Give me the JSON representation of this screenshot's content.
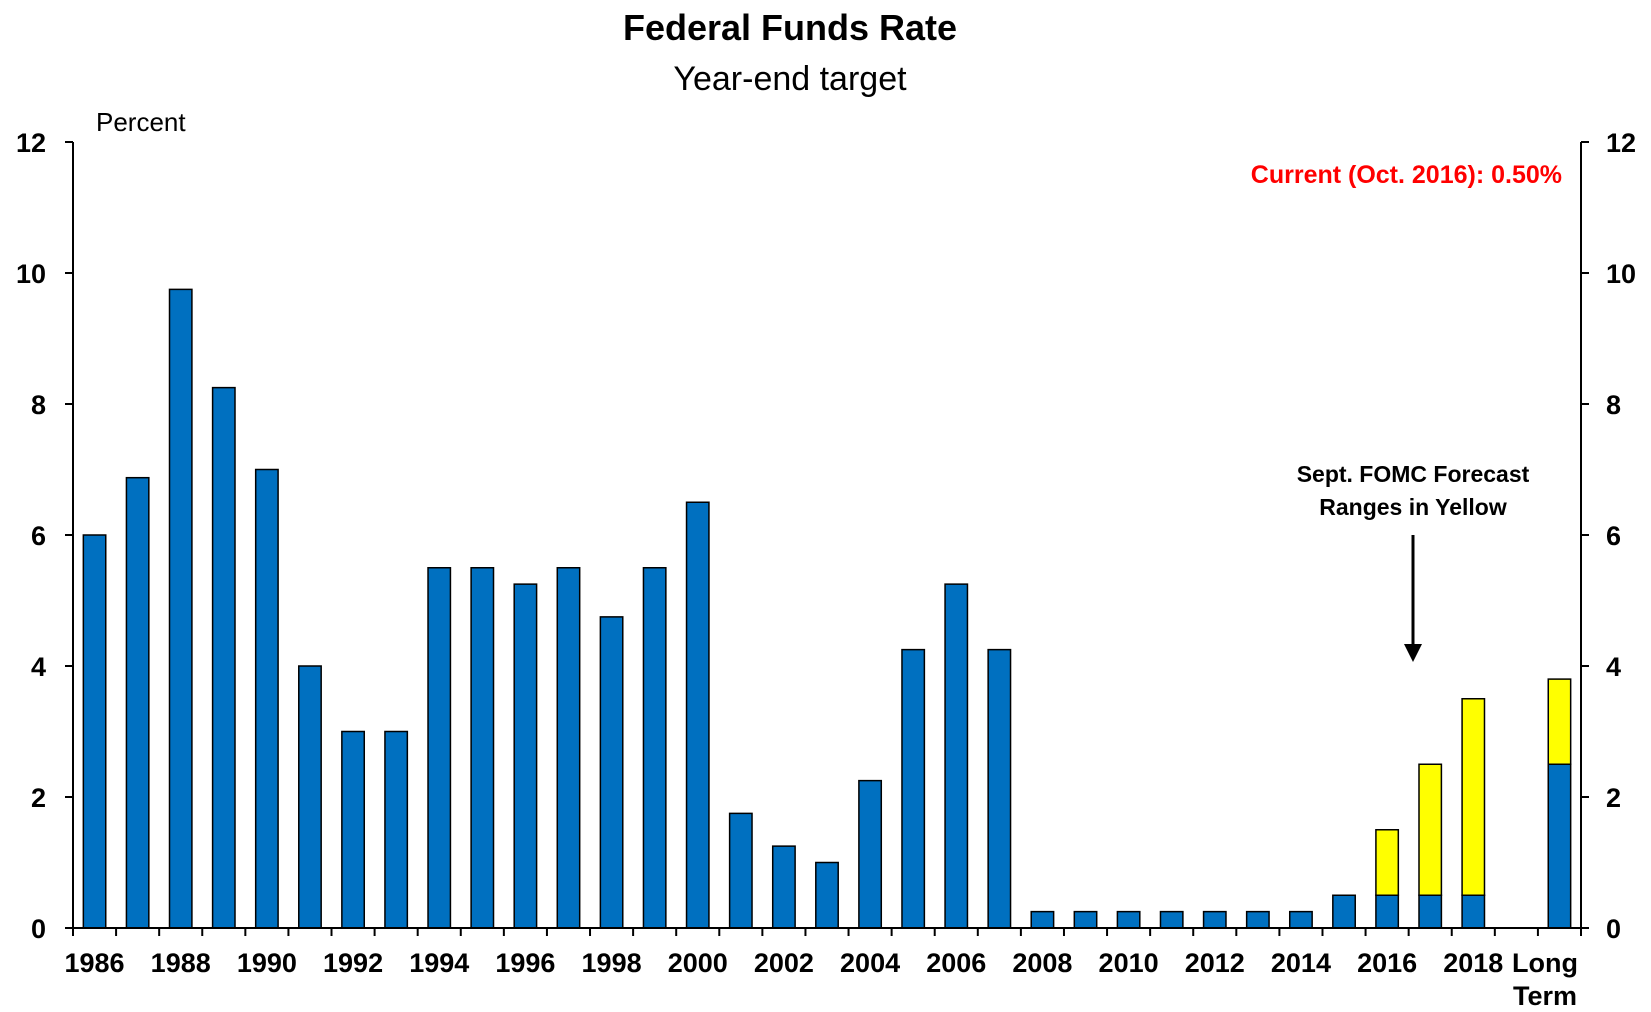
{
  "chart_data": {
    "type": "bar",
    "title": "Federal Funds Rate",
    "subtitle": "Year-end target",
    "ylabel": "Percent",
    "ylim": [
      0,
      12
    ],
    "yticks": [
      0,
      2,
      4,
      6,
      8,
      10,
      12
    ],
    "grid": false,
    "categories": [
      "1986",
      "1987",
      "1988",
      "1989",
      "1990",
      "1991",
      "1992",
      "1993",
      "1994",
      "1995",
      "1996",
      "1997",
      "1998",
      "1999",
      "2000",
      "2001",
      "2002",
      "2003",
      "2004",
      "2005",
      "2006",
      "2007",
      "2008",
      "2009",
      "2010",
      "2011",
      "2012",
      "2013",
      "2014",
      "2015",
      "2016",
      "2017",
      "2018",
      "",
      "Long Term"
    ],
    "xtick_labels": [
      "1986",
      "1988",
      "1990",
      "1992",
      "1994",
      "1996",
      "1998",
      "2000",
      "2002",
      "2004",
      "2006",
      "2008",
      "2010",
      "2012",
      "2014",
      "2016",
      "2018"
    ],
    "series": [
      {
        "values": [
          6.0,
          6.875,
          9.75,
          8.25,
          7.0,
          4.0,
          3.0,
          3.0,
          5.5,
          5.5,
          5.25,
          5.5,
          4.75,
          5.5,
          6.5,
          1.75,
          1.25,
          1.0,
          2.25,
          4.25,
          5.25,
          4.25,
          0.25,
          0.25,
          0.25,
          0.25,
          0.25,
          0.25,
          0.25,
          0.5,
          0.5,
          0.5,
          0.5,
          null,
          2.5
        ]
      },
      {
        "values": [
          null,
          null,
          null,
          null,
          null,
          null,
          null,
          null,
          null,
          null,
          null,
          null,
          null,
          null,
          null,
          null,
          null,
          null,
          null,
          null,
          null,
          null,
          null,
          null,
          null,
          null,
          null,
          null,
          null,
          null,
          1.5,
          2.5,
          3.5,
          null,
          3.8
        ]
      }
    ],
    "annotations": {
      "current": "Current (Oct. 2016): 0.50%",
      "forecast_note_line1": "Sept. FOMC Forecast",
      "forecast_note_line2": "Ranges in Yellow"
    },
    "long_term_label_line1": "Long",
    "long_term_label_line2": "Term",
    "colors": {
      "bar": "#0070C0",
      "forecast": "#FFFF00",
      "current_text": "#FF0000",
      "axis": "#000000"
    }
  }
}
